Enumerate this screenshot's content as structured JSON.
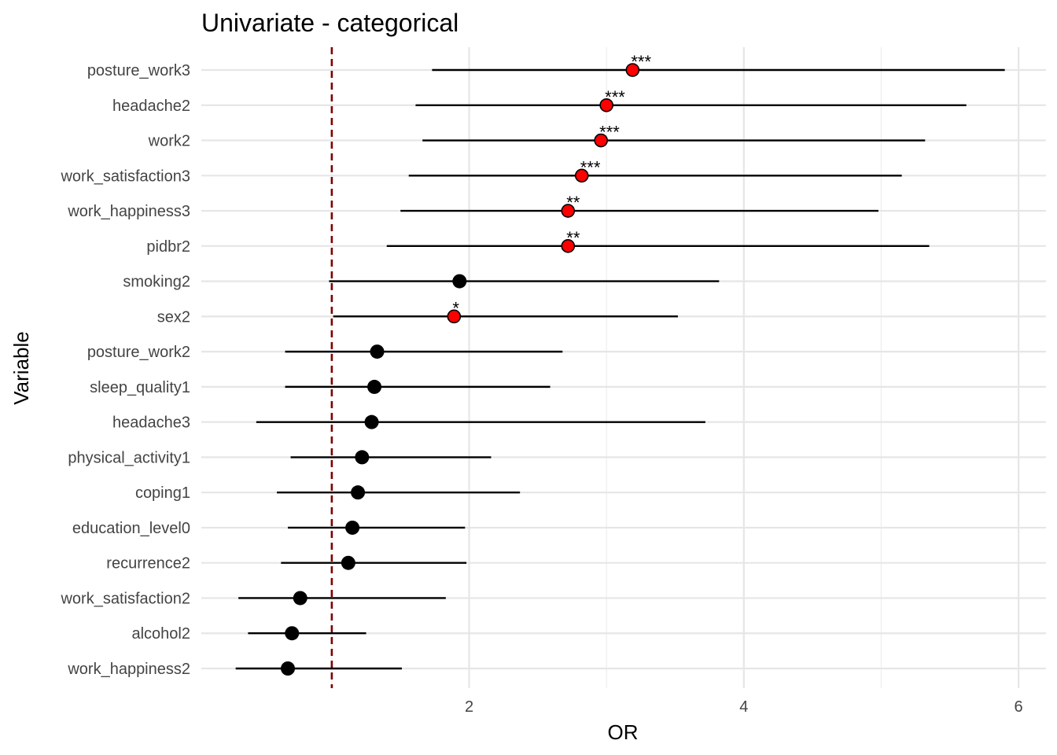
{
  "chart_data": {
    "type": "scatter",
    "subtype": "forest-plot",
    "title": "Univariate - categorical",
    "xlabel": "OR",
    "ylabel": "Variable",
    "xlim": [
      0.05,
      6.2
    ],
    "xticks": [
      2,
      4,
      6
    ],
    "reference_line": {
      "x": 1,
      "color": "#7f0000",
      "style": "dashed"
    },
    "grid": true,
    "colors": {
      "significant": "#ff0000",
      "not_significant": "#000000",
      "ci_line": "#000000"
    },
    "rows": [
      {
        "variable": "posture_work3",
        "or": 3.19,
        "lower": 1.73,
        "upper": 5.9,
        "sig": "***"
      },
      {
        "variable": "headache2",
        "or": 3.0,
        "lower": 1.61,
        "upper": 5.62,
        "sig": "***"
      },
      {
        "variable": "work2",
        "or": 2.96,
        "lower": 1.66,
        "upper": 5.32,
        "sig": "***"
      },
      {
        "variable": "work_satisfaction3",
        "or": 2.82,
        "lower": 1.56,
        "upper": 5.15,
        "sig": "***"
      },
      {
        "variable": "work_happiness3",
        "or": 2.72,
        "lower": 1.5,
        "upper": 4.98,
        "sig": "**"
      },
      {
        "variable": "pidbr2",
        "or": 2.72,
        "lower": 1.4,
        "upper": 5.35,
        "sig": "**"
      },
      {
        "variable": "smoking2",
        "or": 1.93,
        "lower": 0.98,
        "upper": 3.82,
        "sig": ""
      },
      {
        "variable": "sex2",
        "or": 1.89,
        "lower": 1.01,
        "upper": 3.52,
        "sig": "*"
      },
      {
        "variable": "posture_work2",
        "or": 1.33,
        "lower": 0.66,
        "upper": 2.68,
        "sig": ""
      },
      {
        "variable": "sleep_quality1",
        "or": 1.31,
        "lower": 0.66,
        "upper": 2.59,
        "sig": ""
      },
      {
        "variable": "headache3",
        "or": 1.29,
        "lower": 0.45,
        "upper": 3.72,
        "sig": ""
      },
      {
        "variable": "physical_activity1",
        "or": 1.22,
        "lower": 0.7,
        "upper": 2.16,
        "sig": ""
      },
      {
        "variable": "coping1",
        "or": 1.19,
        "lower": 0.6,
        "upper": 2.37,
        "sig": ""
      },
      {
        "variable": "education_level0",
        "or": 1.15,
        "lower": 0.68,
        "upper": 1.97,
        "sig": ""
      },
      {
        "variable": "recurrence2",
        "or": 1.12,
        "lower": 0.63,
        "upper": 1.98,
        "sig": ""
      },
      {
        "variable": "work_satisfaction2",
        "or": 0.77,
        "lower": 0.32,
        "upper": 1.83,
        "sig": ""
      },
      {
        "variable": "alcohol2",
        "or": 0.71,
        "lower": 0.39,
        "upper": 1.25,
        "sig": ""
      },
      {
        "variable": "work_happiness2",
        "or": 0.68,
        "lower": 0.3,
        "upper": 1.51,
        "sig": ""
      }
    ]
  }
}
